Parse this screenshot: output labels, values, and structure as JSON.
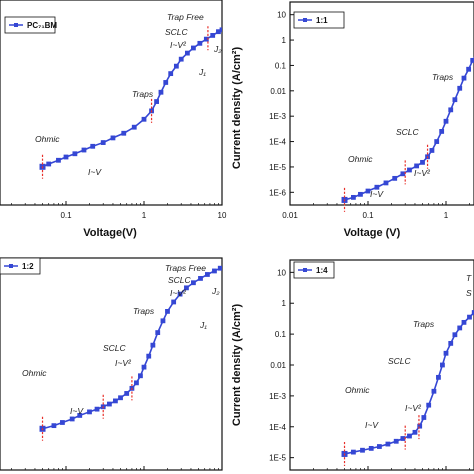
{
  "chart_data": [
    {
      "type": "line",
      "legend": "PC₇₁BM",
      "xlabel": "Voltage(V)",
      "ylabel": "",
      "x_scale": "log",
      "y_scale": "log",
      "xlim": [
        0.01,
        10
      ],
      "x_ticks": [
        "0.1",
        "1",
        "10"
      ],
      "y_ticks": [],
      "series": [
        {
          "x": [
            0.05,
            0.06,
            0.08,
            0.1,
            0.13,
            0.17,
            0.22,
            0.3,
            0.4,
            0.55,
            0.75,
            1.0,
            1.25,
            1.45,
            1.65,
            1.9,
            2.2,
            2.6,
            3.0,
            3.6,
            4.3,
            5.2,
            6.3,
            7.6,
            9.0,
            10.0
          ],
          "y": [
            -4.78,
            -4.72,
            -4.64,
            -4.57,
            -4.5,
            -4.42,
            -4.34,
            -4.26,
            -4.16,
            -4.06,
            -3.93,
            -3.76,
            -3.58,
            -3.38,
            -3.18,
            -2.97,
            -2.78,
            -2.62,
            -2.47,
            -2.34,
            -2.23,
            -2.13,
            -2.04,
            -1.96,
            -1.88,
            -1.84
          ]
        }
      ],
      "annotations": [
        "Ohmic",
        "I~V",
        "Traps",
        "Trap Free",
        "SCLC",
        "I~V²",
        "J₁",
        "J₂"
      ]
    },
    {
      "type": "line",
      "legend": "1:1",
      "xlabel": "Voltage (V)",
      "ylabel": "Current density (A/cm²)",
      "x_scale": "log",
      "y_scale": "log",
      "xlim": [
        0.01,
        10
      ],
      "ylim": [
        -6.5,
        1.5
      ],
      "x_ticks": [
        "0.01",
        "0.1",
        "1"
      ],
      "y_ticks": [
        "1E-6",
        "1E-5",
        "1E-4",
        "1E-3",
        "0.01",
        "0.1",
        "1",
        "10"
      ],
      "series": [
        {
          "x": [
            0.05,
            0.065,
            0.08,
            0.1,
            0.13,
            0.17,
            0.22,
            0.28,
            0.34,
            0.42,
            0.5,
            0.58,
            0.66,
            0.76,
            0.88,
            1.0,
            1.15,
            1.3,
            1.5,
            1.7,
            1.95,
            2.2,
            2.5,
            2.8,
            3.1
          ],
          "y": [
            -6.3,
            -6.2,
            -6.08,
            -5.95,
            -5.8,
            -5.63,
            -5.45,
            -5.27,
            -5.12,
            -4.96,
            -4.82,
            -4.6,
            -4.35,
            -4.0,
            -3.6,
            -3.2,
            -2.75,
            -2.35,
            -1.9,
            -1.5,
            -1.15,
            -0.8,
            -0.5,
            -0.22,
            0.02
          ]
        }
      ],
      "annotations": [
        "Ohmic",
        "I~V",
        "SCLC",
        "I~V²",
        "Traps"
      ]
    },
    {
      "type": "line",
      "legend": "1:2",
      "xlabel": "Voltage (V)",
      "ylabel": "",
      "x_scale": "log",
      "y_scale": "log",
      "xlim": [
        0.01,
        10
      ],
      "x_ticks": [
        "0.1",
        "1",
        "10"
      ],
      "y_ticks": [],
      "series": [
        {
          "x": [
            0.05,
            0.07,
            0.09,
            0.12,
            0.15,
            0.2,
            0.25,
            0.3,
            0.36,
            0.43,
            0.5,
            0.6,
            0.7,
            0.8,
            0.9,
            1.0,
            1.15,
            1.3,
            1.5,
            1.75,
            2.0,
            2.4,
            2.9,
            3.5,
            4.3,
            5.3,
            6.5,
            8.0,
            9.5
          ],
          "y": [
            -5.35,
            -5.27,
            -5.19,
            -5.1,
            -5.01,
            -4.92,
            -4.85,
            -4.79,
            -4.72,
            -4.64,
            -4.56,
            -4.45,
            -4.32,
            -4.18,
            -4.0,
            -3.78,
            -3.5,
            -3.22,
            -2.9,
            -2.6,
            -2.36,
            -2.12,
            -1.92,
            -1.76,
            -1.63,
            -1.52,
            -1.42,
            -1.33,
            -1.26
          ]
        }
      ],
      "annotations": [
        "Ohmic",
        "I~V",
        "SCLC",
        "I~V²",
        "Traps",
        "Traps Free",
        "SCLC",
        "I~V²",
        "J₁",
        "J₂"
      ]
    },
    {
      "type": "line",
      "legend": "1:4",
      "xlabel": "Voltage (V)",
      "ylabel": "Current density (A/cm²)",
      "x_scale": "log",
      "y_scale": "log",
      "xlim": [
        0.01,
        10
      ],
      "ylim": [
        -5.4,
        1.4
      ],
      "x_ticks": [
        "0.01",
        "0.1",
        "1"
      ],
      "y_ticks": [
        "1E-5",
        "1E-4",
        "1E-3",
        "0.01",
        "0.1",
        "1",
        "10"
      ],
      "series": [
        {
          "x": [
            0.05,
            0.065,
            0.085,
            0.11,
            0.14,
            0.18,
            0.23,
            0.28,
            0.34,
            0.4,
            0.46,
            0.52,
            0.6,
            0.7,
            0.8,
            0.9,
            1.0,
            1.15,
            1.3,
            1.5,
            1.7,
            2.0,
            2.3,
            2.7,
            3.1
          ],
          "y": [
            -4.88,
            -4.82,
            -4.76,
            -4.7,
            -4.64,
            -4.56,
            -4.47,
            -4.38,
            -4.3,
            -4.18,
            -3.98,
            -3.7,
            -3.3,
            -2.85,
            -2.4,
            -2.0,
            -1.62,
            -1.3,
            -1.02,
            -0.8,
            -0.62,
            -0.45,
            -0.3,
            -0.15,
            -0.03
          ]
        }
      ],
      "annotations": [
        "Ohmic",
        "I~V",
        "SCLC",
        "I~V²",
        "Traps",
        "T",
        "S"
      ]
    }
  ]
}
